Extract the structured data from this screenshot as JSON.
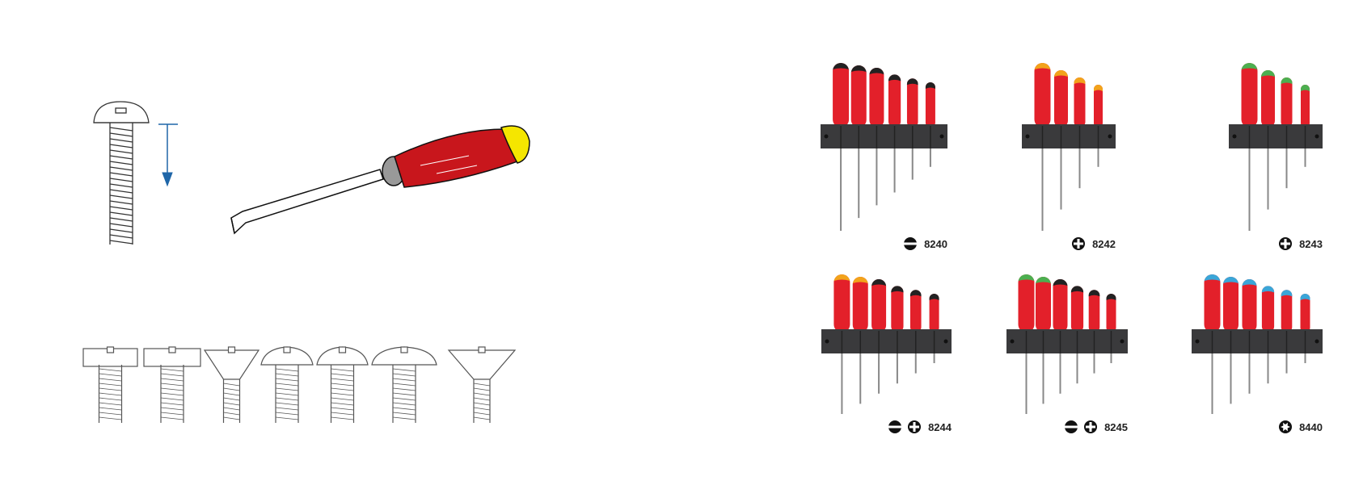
{
  "illustrations": {
    "screw_diagram": "screw-with-arrow",
    "screwdriver": "flat-blade-screwdriver",
    "screw_head_types": [
      "cheese-head",
      "flat-cylinder-head",
      "countersunk-head",
      "pan-head",
      "raised-countersunk-head",
      "mushroom-head",
      "flat-countersunk-head"
    ]
  },
  "colors": {
    "handle": "#e3202a",
    "rack": "#3a3a3c",
    "screwdriver_handle": "#c8161c",
    "screwdriver_cap": "#f5e600",
    "arrow": "#1f66a8"
  },
  "sets": [
    {
      "code": "8240",
      "icons": [
        "slotted"
      ],
      "caps": [
        "#222",
        "#222",
        "#222",
        "#222",
        "#222",
        "#222"
      ]
    },
    {
      "code": "8242",
      "icons": [
        "phillips"
      ],
      "caps": [
        "#f2a31b",
        "#f2a31b",
        "#f2a31b",
        "#f2a31b"
      ]
    },
    {
      "code": "8243",
      "icons": [
        "pozidriv"
      ],
      "caps": [
        "#4caf50",
        "#4caf50",
        "#4caf50",
        "#4caf50"
      ]
    },
    {
      "code": "8244",
      "icons": [
        "slotted",
        "phillips"
      ],
      "caps": [
        "#f2a31b",
        "#f2a31b",
        "#222",
        "#222",
        "#222",
        "#222"
      ]
    },
    {
      "code": "8245",
      "icons": [
        "slotted",
        "pozidriv"
      ],
      "caps": [
        "#4caf50",
        "#4caf50",
        "#222",
        "#222",
        "#222",
        "#222"
      ]
    },
    {
      "code": "8440",
      "icons": [
        "torx"
      ],
      "caps": [
        "#3aa6d8",
        "#3aa6d8",
        "#3aa6d8",
        "#3aa6d8",
        "#3aa6d8",
        "#3aa6d8"
      ]
    }
  ]
}
